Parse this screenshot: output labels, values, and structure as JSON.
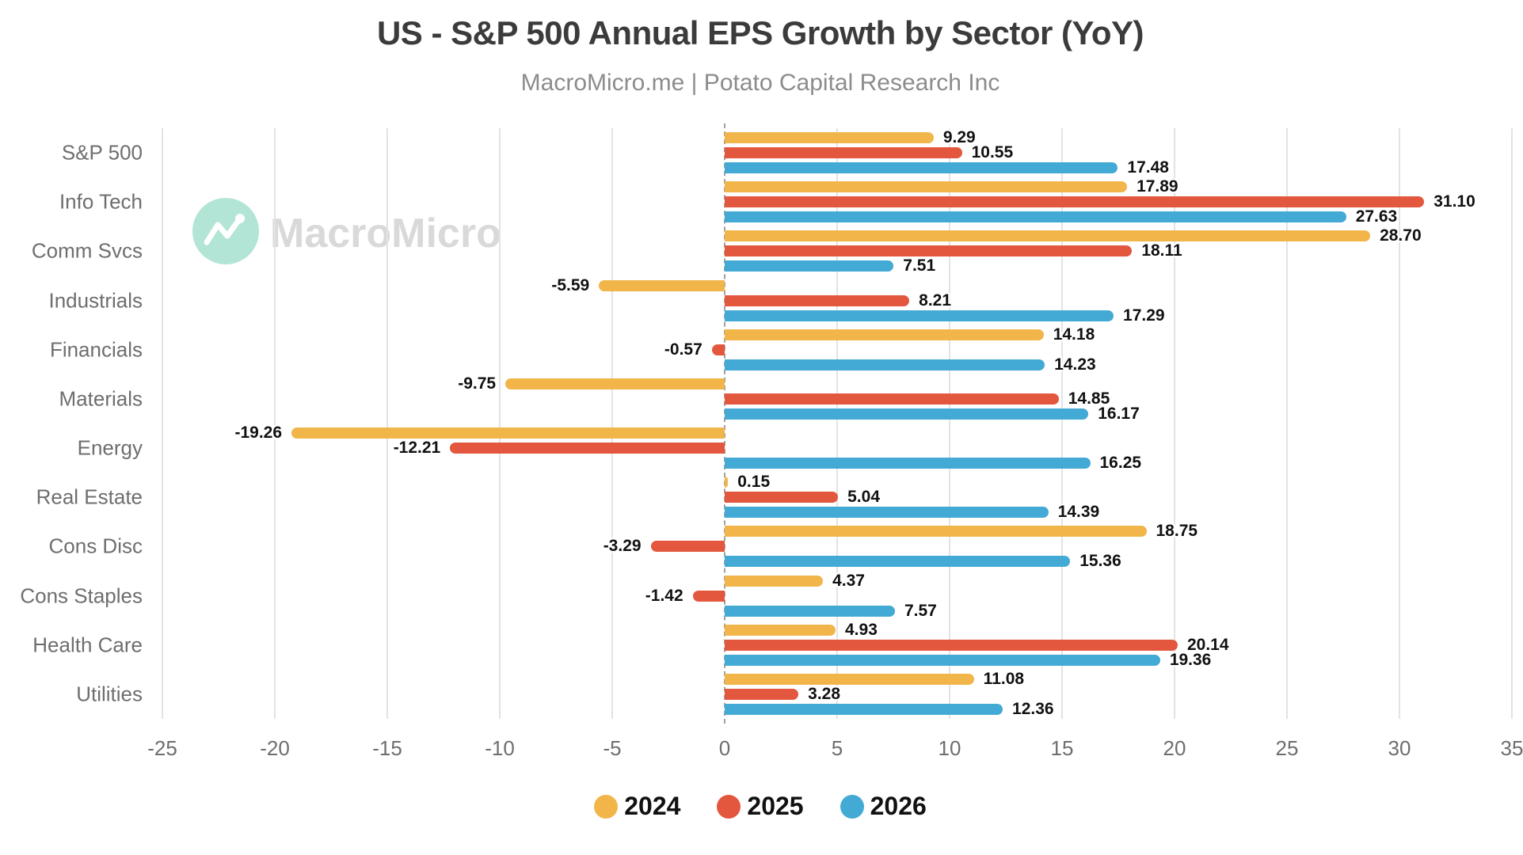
{
  "header": {
    "title": "US - S&P 500 Annual EPS Growth by Sector (YoY)",
    "subtitle": "MacroMicro.me | Potato Capital Research Inc"
  },
  "watermark": {
    "brand": "MacroMicro",
    "logo_color": "#b2e5d5",
    "text_color": "#d9d9d9"
  },
  "chart_data": {
    "type": "bar",
    "orientation": "horizontal",
    "title": "US - S&P 500 Annual EPS Growth by Sector (YoY)",
    "subtitle": "MacroMicro.me | Potato Capital Research Inc",
    "categories": [
      "S&P 500",
      "Info Tech",
      "Comm Svcs",
      "Industrials",
      "Financials",
      "Materials",
      "Energy",
      "Real Estate",
      "Cons Disc",
      "Cons Staples",
      "Health Care",
      "Utilities"
    ],
    "series": [
      {
        "name": "2024",
        "color": "#F1B54A",
        "values": [
          9.29,
          17.89,
          28.7,
          -5.59,
          14.18,
          -9.75,
          -19.26,
          0.15,
          18.75,
          4.37,
          4.93,
          11.08
        ]
      },
      {
        "name": "2025",
        "color": "#E4573F",
        "values": [
          10.55,
          31.1,
          18.11,
          8.21,
          -0.57,
          14.85,
          -12.21,
          5.04,
          -3.29,
          -1.42,
          20.14,
          3.28
        ]
      },
      {
        "name": "2026",
        "color": "#43A9D5",
        "values": [
          17.48,
          27.63,
          7.51,
          17.29,
          14.23,
          16.17,
          16.25,
          14.39,
          15.36,
          7.57,
          19.36,
          12.36
        ]
      }
    ],
    "xlim": [
      -25,
      35
    ],
    "xticks": [
      -25,
      -20,
      -15,
      -10,
      -5,
      0,
      5,
      10,
      15,
      20,
      25,
      30,
      35
    ],
    "value_label_decimals": 2,
    "grid": true,
    "zero_line": "dashed",
    "legend_position": "bottom",
    "colors": {
      "grid": "#e3e3e3",
      "zero_line": "#a0a0a0",
      "axis_text": "#6e6e6e",
      "value_text": "#111111",
      "title_text": "#3b3b3b",
      "subtitle_text": "#8c8c8c"
    }
  }
}
